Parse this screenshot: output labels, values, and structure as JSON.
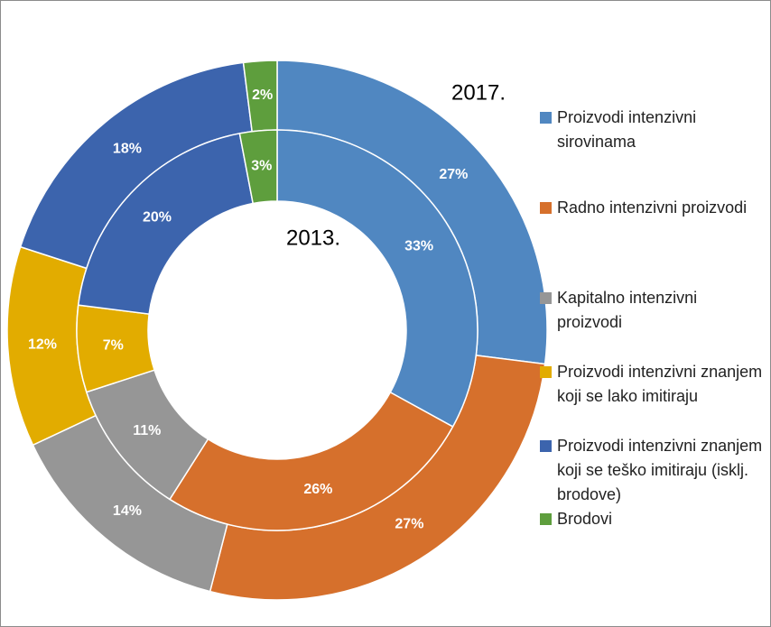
{
  "chart_data": {
    "type": "donut",
    "categories": [
      "Proizvodi intenzivni sirovinama",
      "Radno intenzivni proizvodi",
      "Kapitalno intenzivni proizvodi",
      "Proizvodi intenzivni znanjem koji se lako imitiraju",
      "Proizvodi intenzivni znanjem koji se teško imitiraju (isklj. brodove)",
      "Brodovi"
    ],
    "colors": [
      "#5087c1",
      "#d6702c",
      "#969696",
      "#e2ac00",
      "#3c64ad",
      "#5e9e3d"
    ],
    "series": [
      {
        "name": "2017.",
        "values": [
          27,
          27,
          14,
          12,
          18,
          2
        ],
        "value_labels": [
          "27%",
          "27%",
          "14%",
          "12%",
          "18%",
          "2%"
        ]
      },
      {
        "name": "2013.",
        "values": [
          33,
          26,
          11,
          7,
          20,
          3
        ],
        "value_labels": [
          "33%",
          "26%",
          "11%",
          "7%",
          "20%",
          "3%"
        ]
      }
    ],
    "annotations": [
      "."
    ],
    "legend": "right"
  }
}
